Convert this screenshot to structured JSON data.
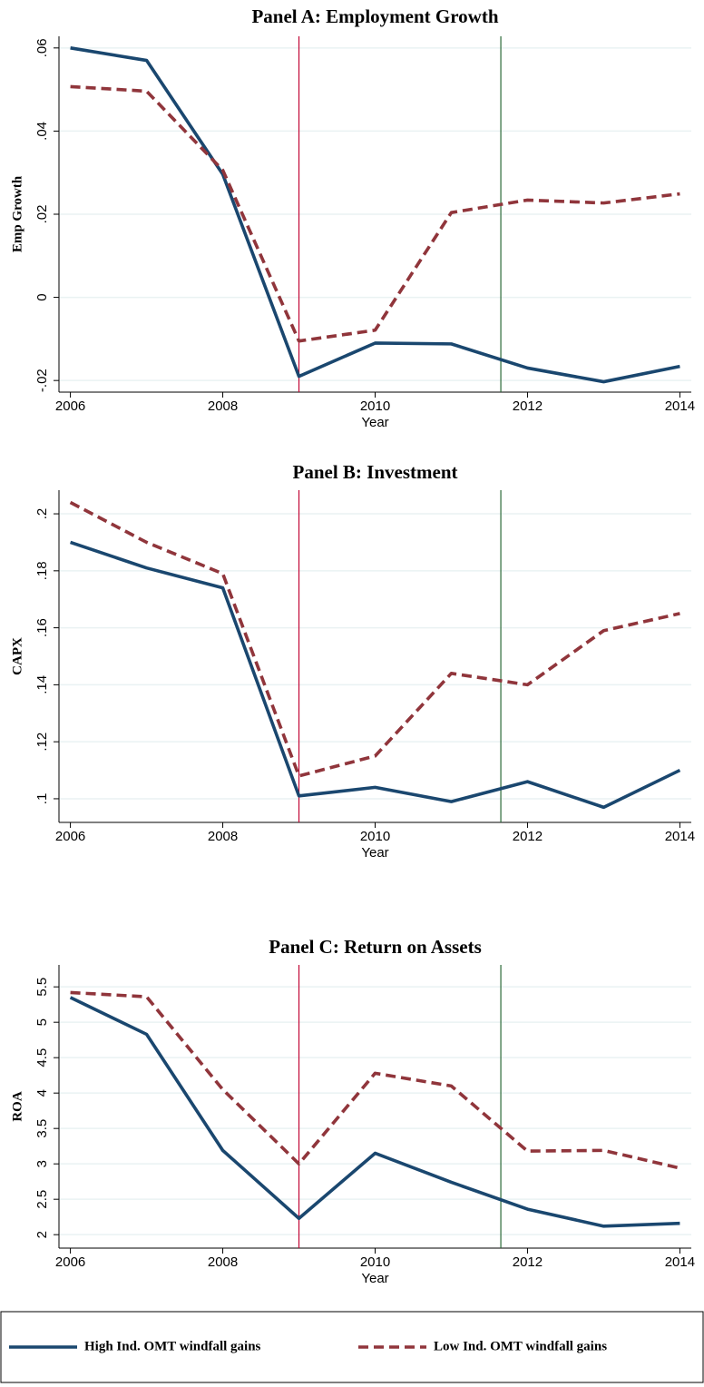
{
  "chart_data": [
    {
      "type": "line",
      "title": "Panel A: Employment Growth",
      "xlabel": "Year",
      "ylabel": "Emp Growth",
      "x": [
        2006,
        2007,
        2008,
        2009,
        2010,
        2011,
        2012,
        2013,
        2014
      ],
      "series": [
        {
          "color": "#1a476f",
          "dash": false,
          "values": [
            0.06,
            0.057,
            0.0296,
            -0.019,
            -0.011,
            -0.0112,
            -0.017,
            -0.0203,
            -0.0166
          ]
        },
        {
          "color": "#90353b",
          "dash": true,
          "values": [
            0.0507,
            0.0496,
            0.0306,
            -0.0105,
            -0.0079,
            0.0204,
            0.0234,
            0.0227,
            0.0249
          ]
        }
      ],
      "xlim": [
        2005.85,
        2014.15
      ],
      "ylim": [
        -0.0228,
        0.0628
      ],
      "xticks": [
        2006,
        2008,
        2010,
        2012,
        2014
      ],
      "yticks": [
        {
          "value": -0.02,
          "label": "-.02"
        },
        0,
        {
          "value": 0.02,
          "label": ".02"
        },
        {
          "value": 0.04,
          "label": ".04"
        },
        {
          "value": 0.06,
          "label": ".06"
        }
      ],
      "grid": true,
      "vlines": [
        {
          "x": 2009,
          "color": "#c10534"
        },
        {
          "x": 2011.65,
          "color": "#2e6b3a"
        }
      ]
    },
    {
      "type": "line",
      "title": "Panel B: Investment",
      "xlabel": "Year",
      "ylabel": "CAPX",
      "x": [
        2006,
        2007,
        2008,
        2009,
        2010,
        2011,
        2012,
        2013,
        2014
      ],
      "series": [
        {
          "color": "#1a476f",
          "dash": false,
          "values": [
            0.19,
            0.181,
            0.174,
            0.101,
            0.104,
            0.099,
            0.106,
            0.097,
            0.11
          ]
        },
        {
          "color": "#90353b",
          "dash": true,
          "values": [
            0.204,
            0.19,
            0.179,
            0.108,
            0.115,
            0.144,
            0.14,
            0.159,
            0.165
          ]
        }
      ],
      "xlim": [
        2005.85,
        2014.15
      ],
      "ylim": [
        0.0917,
        0.2083
      ],
      "xticks": [
        2006,
        2008,
        2010,
        2012,
        2014
      ],
      "yticks": [
        {
          "value": 0.1,
          "label": ".1"
        },
        {
          "value": 0.12,
          "label": ".12"
        },
        {
          "value": 0.14,
          "label": ".14"
        },
        {
          "value": 0.16,
          "label": ".16"
        },
        {
          "value": 0.18,
          "label": ".18"
        },
        {
          "value": 0.2,
          "label": ".2"
        }
      ],
      "grid": true,
      "vlines": [
        {
          "x": 2009,
          "color": "#c10534"
        },
        {
          "x": 2011.65,
          "color": "#2e6b3a"
        }
      ]
    },
    {
      "type": "line",
      "title": "Panel C: Return on Assets",
      "xlabel": "Year",
      "ylabel": "ROA",
      "x": [
        2006,
        2007,
        2008,
        2009,
        2010,
        2011,
        2012,
        2013,
        2014
      ],
      "series": [
        {
          "name": "High Ind. OMT windfall gains",
          "color": "#1a476f",
          "dash": false,
          "values": [
            5.35,
            4.83,
            3.19,
            2.23,
            3.15,
            2.74,
            2.36,
            2.12,
            2.16
          ]
        },
        {
          "name": "Low Ind. OMT windfall gains",
          "color": "#90353b",
          "dash": true,
          "values": [
            5.42,
            5.36,
            4.05,
            3.0,
            4.28,
            4.1,
            3.18,
            3.19,
            2.94
          ]
        }
      ],
      "xlim": [
        2005.85,
        2014.15
      ],
      "ylim": [
        1.81,
        5.81
      ],
      "xticks": [
        2006,
        2008,
        2010,
        2012,
        2014
      ],
      "yticks": [
        2,
        2.5,
        3,
        3.5,
        4,
        4.5,
        5,
        5.5
      ],
      "grid": true,
      "legend": "bottom",
      "vlines": [
        {
          "x": 2009,
          "color": "#c10534"
        },
        {
          "x": 2011.65,
          "color": "#2e6b3a"
        }
      ]
    }
  ]
}
